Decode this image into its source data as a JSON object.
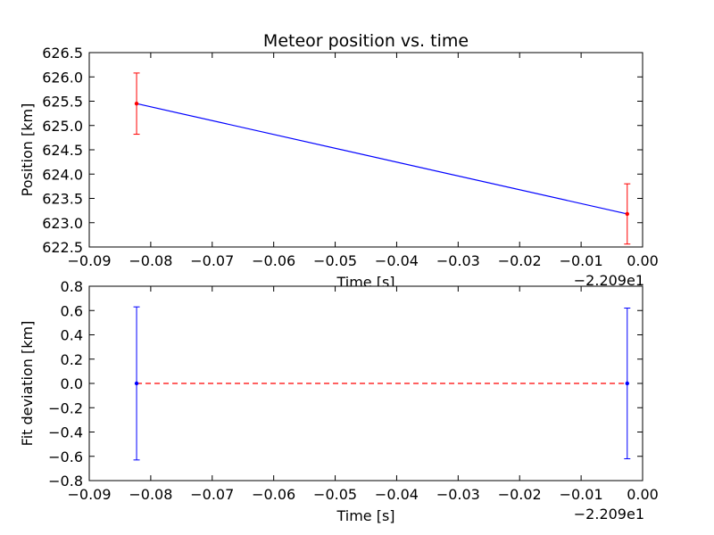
{
  "chart_data": [
    {
      "type": "line",
      "title": "Meteor position vs. time",
      "xlabel": "Time [s]",
      "ylabel": "Position [km]",
      "x_offset_label": "−2.209e1",
      "xlim": [
        -0.09,
        0.0
      ],
      "ylim": [
        622.5,
        626.5
      ],
      "x_ticks": [
        -0.09,
        -0.08,
        -0.07,
        -0.06,
        -0.05,
        -0.04,
        -0.03,
        -0.02,
        -0.01,
        0.0
      ],
      "x_tick_labels": [
        "−0.09",
        "−0.08",
        "−0.07",
        "−0.06",
        "−0.05",
        "−0.04",
        "−0.03",
        "−0.02",
        "−0.01",
        "0.00"
      ],
      "y_ticks": [
        622.5,
        623.0,
        623.5,
        624.0,
        624.5,
        625.0,
        625.5,
        626.0,
        626.5
      ],
      "y_tick_labels": [
        "622.5",
        "623.0",
        "623.5",
        "624.0",
        "624.5",
        "625.0",
        "625.5",
        "626.0",
        "626.5"
      ],
      "series": [
        {
          "name": "fit",
          "kind": "line",
          "color": "#0000ff",
          "x": [
            -0.0823,
            -0.0025
          ],
          "y": [
            625.45,
            623.18
          ]
        },
        {
          "name": "observations",
          "kind": "errorbar",
          "color": "#ff0000",
          "x": [
            -0.0823,
            -0.0025
          ],
          "y": [
            625.45,
            623.18
          ],
          "yerr": [
            0.63,
            0.62
          ]
        }
      ]
    },
    {
      "type": "line",
      "title": "",
      "xlabel": "Time [s]",
      "ylabel": "Fit deviation [km]",
      "x_offset_label": "−2.209e1",
      "xlim": [
        -0.09,
        0.0
      ],
      "ylim": [
        -0.8,
        0.8
      ],
      "x_ticks": [
        -0.09,
        -0.08,
        -0.07,
        -0.06,
        -0.05,
        -0.04,
        -0.03,
        -0.02,
        -0.01,
        0.0
      ],
      "x_tick_labels": [
        "−0.09",
        "−0.08",
        "−0.07",
        "−0.06",
        "−0.05",
        "−0.04",
        "−0.03",
        "−0.02",
        "−0.01",
        "0.00"
      ],
      "y_ticks": [
        -0.8,
        -0.6,
        -0.4,
        -0.2,
        0.0,
        0.2,
        0.4,
        0.6,
        0.8
      ],
      "y_tick_labels": [
        "−0.8",
        "−0.6",
        "−0.4",
        "−0.2",
        "0.0",
        "0.2",
        "0.4",
        "0.6",
        "0.8"
      ],
      "series": [
        {
          "name": "zero",
          "kind": "dashed",
          "color": "#ff0000",
          "x": [
            -0.0823,
            -0.0025
          ],
          "y": [
            0.0,
            0.0
          ]
        },
        {
          "name": "deviation",
          "kind": "errorbar",
          "color": "#0000ff",
          "x": [
            -0.0823,
            -0.0025
          ],
          "y": [
            0.0,
            0.0
          ],
          "yerr": [
            0.63,
            0.62
          ]
        }
      ]
    }
  ]
}
